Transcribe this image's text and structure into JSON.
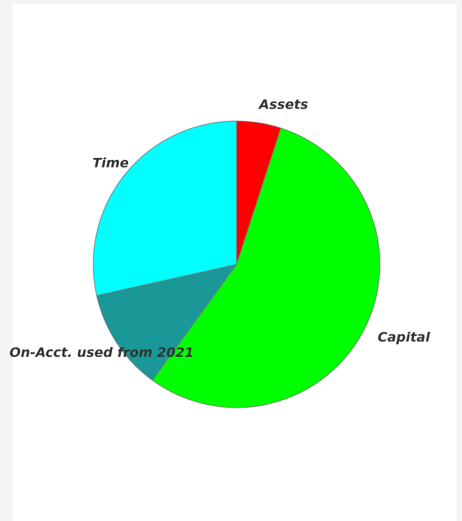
{
  "chart_data": {
    "type": "pie",
    "categories": [
      "Assets",
      "Capital",
      "On-Acct. used from 2021",
      "Time"
    ],
    "values": [
      5,
      55,
      11.5,
      28.5
    ],
    "colors": [
      "#ff0000",
      "#00ff00",
      "#1a9898",
      "#00ffff"
    ]
  }
}
